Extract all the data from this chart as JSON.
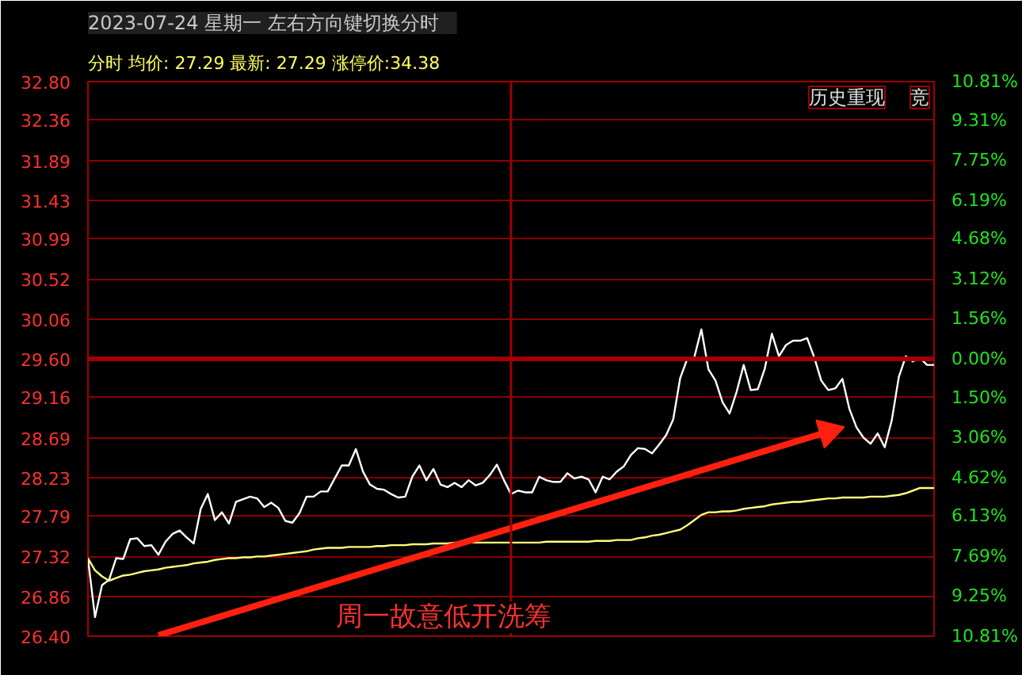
{
  "chart_data": {
    "type": "line",
    "title": "2023-07-24 星期一    左右方向键切换分时",
    "subtitle": "分时 均价: 27.29 最新: 27.29 涨停价:34.38",
    "annotations": [
      "历史重现",
      "竞",
      "周一故意低开洗筹"
    ],
    "categories": [
      null,
      null,
      null,
      null,
      null,
      null,
      null,
      null,
      null,
      null,
      null,
      null,
      null,
      null,
      null,
      null,
      null,
      null,
      null,
      null,
      null,
      null,
      null,
      null,
      null,
      null,
      null,
      null,
      null,
      null,
      null,
      null,
      null,
      null,
      null,
      null,
      null,
      null,
      null,
      null,
      null,
      null,
      null,
      null,
      null,
      null,
      null,
      null,
      null,
      null,
      null,
      null,
      null,
      null,
      null,
      null,
      null,
      null,
      null,
      null,
      null,
      null,
      null,
      null,
      null,
      null,
      null,
      null,
      null,
      null,
      null,
      null,
      null,
      null,
      null,
      null,
      null,
      null,
      null,
      null,
      null,
      null,
      null,
      null,
      null,
      null,
      null,
      null,
      null,
      null,
      null,
      null,
      null,
      null,
      null,
      null,
      null,
      null,
      null,
      null,
      null,
      null,
      null,
      null,
      null,
      null,
      null,
      null,
      null,
      null,
      null,
      null,
      null,
      null,
      null,
      null,
      null,
      null,
      null,
      null,
      null
    ],
    "ylim": [
      26.4,
      32.8
    ],
    "yticks": [
      {
        "value": 26.4,
        "label": "26.40"
      },
      26.86,
      27.32,
      27.79,
      28.23,
      28.69,
      29.16,
      {
        "value": 29.6,
        "label": "29.60"
      },
      30.06,
      30.52,
      30.99,
      31.43,
      31.89,
      32.36,
      {
        "value": 32.8,
        "label": "32.80"
      }
    ],
    "y2lim": [
      -10.81,
      10.81
    ],
    "y2ticks": [
      {
        "value": -10.81,
        "label": "10.81%"
      },
      {
        "value": -9.25,
        "label": "9.25%"
      },
      {
        "value": -7.69,
        "label": "7.69%"
      },
      {
        "value": -6.13,
        "label": "6.13%"
      },
      {
        "value": -4.62,
        "label": "4.62%"
      },
      {
        "value": -3.06,
        "label": "3.06%"
      },
      {
        "value": -1.5,
        "label": "1.50%"
      },
      {
        "value": 0,
        "label": "0.00%"
      },
      {
        "value": 1.56,
        "label": "1.56%"
      },
      {
        "value": 3.12,
        "label": "3.12%"
      },
      {
        "value": 4.68,
        "label": "4.68%"
      },
      {
        "value": 6.19,
        "label": "6.19%"
      },
      {
        "value": 7.75,
        "label": "7.75%"
      },
      {
        "value": 9.31,
        "label": "9.31%"
      },
      {
        "value": 10.81,
        "label": "10.81%"
      }
    ],
    "grid": "y",
    "ref_lines": [
      {
        "axis": "y",
        "value": 29.6,
        "color": "#a00000"
      }
    ],
    "series": [
      {
        "color": "#ffffff",
        "values": [
          27.3,
          26.62,
          26.99,
          27.05,
          27.3,
          27.29,
          27.52,
          27.53,
          27.44,
          27.45,
          27.34,
          27.49,
          27.58,
          27.62,
          27.54,
          27.47,
          27.87,
          28.04,
          27.74,
          27.83,
          27.7,
          27.95,
          27.98,
          28.01,
          27.99,
          27.89,
          27.94,
          27.88,
          27.73,
          27.71,
          27.82,
          28.01,
          28.01,
          28.07,
          28.07,
          28.22,
          28.37,
          28.37,
          28.56,
          28.3,
          28.15,
          28.1,
          28.09,
          28.04,
          28.0,
          28.01,
          28.24,
          28.37,
          28.2,
          28.33,
          28.15,
          28.12,
          28.17,
          28.12,
          28.2,
          28.14,
          28.17,
          28.26,
          28.38,
          28.2,
          28.04,
          28.08,
          28.06,
          28.06,
          28.24,
          28.2,
          28.18,
          28.18,
          28.28,
          28.22,
          28.24,
          28.21,
          28.06,
          28.24,
          28.21,
          28.3,
          28.36,
          28.49,
          28.57,
          28.56,
          28.51,
          28.61,
          28.72,
          28.9,
          29.38,
          29.6,
          29.62,
          29.94,
          29.48,
          29.35,
          29.1,
          28.97,
          29.22,
          29.53,
          29.24,
          29.25,
          29.49,
          29.89,
          29.63,
          29.76,
          29.81,
          29.81,
          29.84,
          29.62,
          29.35,
          29.24,
          29.26,
          29.37,
          29.02,
          28.81,
          28.69,
          28.62,
          28.74,
          28.58,
          28.89,
          29.39,
          29.63,
          29.57,
          29.61,
          29.53,
          29.53
        ]
      },
      {
        "color": "#ffff80",
        "values": [
          27.3,
          27.16,
          27.09,
          27.04,
          27.07,
          27.1,
          27.11,
          27.13,
          27.15,
          27.16,
          27.17,
          27.19,
          27.2,
          27.21,
          27.22,
          27.24,
          27.25,
          27.26,
          27.28,
          27.29,
          27.3,
          27.3,
          27.31,
          27.31,
          27.32,
          27.32,
          27.33,
          27.34,
          27.35,
          27.36,
          27.37,
          27.38,
          27.4,
          27.41,
          27.42,
          27.42,
          27.42,
          27.43,
          27.43,
          27.43,
          27.43,
          27.44,
          27.44,
          27.45,
          27.45,
          27.45,
          27.46,
          27.46,
          27.46,
          27.47,
          27.47,
          27.47,
          27.48,
          27.48,
          27.48,
          27.48,
          27.48,
          27.48,
          27.48,
          27.48,
          27.48,
          27.48,
          27.48,
          27.48,
          27.48,
          27.49,
          27.49,
          27.49,
          27.49,
          27.49,
          27.49,
          27.49,
          27.5,
          27.5,
          27.5,
          27.51,
          27.51,
          27.51,
          27.53,
          27.54,
          27.56,
          27.57,
          27.59,
          27.61,
          27.63,
          27.68,
          27.74,
          27.8,
          27.83,
          27.83,
          27.84,
          27.84,
          27.85,
          27.87,
          27.88,
          27.89,
          27.9,
          27.92,
          27.93,
          27.94,
          27.95,
          27.95,
          27.96,
          27.97,
          27.98,
          27.99,
          27.99,
          28.0,
          28.0,
          28.0,
          28.0,
          28.01,
          28.01,
          28.01,
          28.02,
          28.03,
          28.05,
          28.08,
          28.11,
          28.11,
          28.11
        ]
      },
      {
        "color": "#ff2010",
        "values": [
          null,
          null,
          null,
          null,
          null,
          null,
          null,
          null,
          null,
          null,
          26.41,
          null,
          null,
          null,
          null,
          null,
          null,
          null,
          null,
          null,
          null,
          null,
          null,
          null,
          null,
          null,
          null,
          null,
          null,
          null,
          null,
          null,
          null,
          null,
          null,
          null,
          null,
          null,
          null,
          null,
          null,
          null,
          null,
          null,
          null,
          null,
          null,
          null,
          null,
          null,
          null,
          null,
          null,
          null,
          null,
          null,
          null,
          null,
          null,
          null,
          null,
          null,
          null,
          null,
          null,
          null,
          null,
          null,
          null,
          null,
          null,
          null,
          null,
          null,
          null,
          null,
          null,
          null,
          null,
          null,
          null,
          null,
          null,
          null,
          null,
          null,
          null,
          null,
          null,
          null,
          null,
          null,
          null,
          null,
          null,
          null,
          null,
          null,
          null,
          null,
          null,
          null,
          null,
          null,
          null,
          28.76,
          null,
          null,
          null,
          null,
          null,
          null,
          null,
          null,
          null,
          null,
          null,
          null,
          null,
          null,
          null
        ]
      }
    ]
  }
}
